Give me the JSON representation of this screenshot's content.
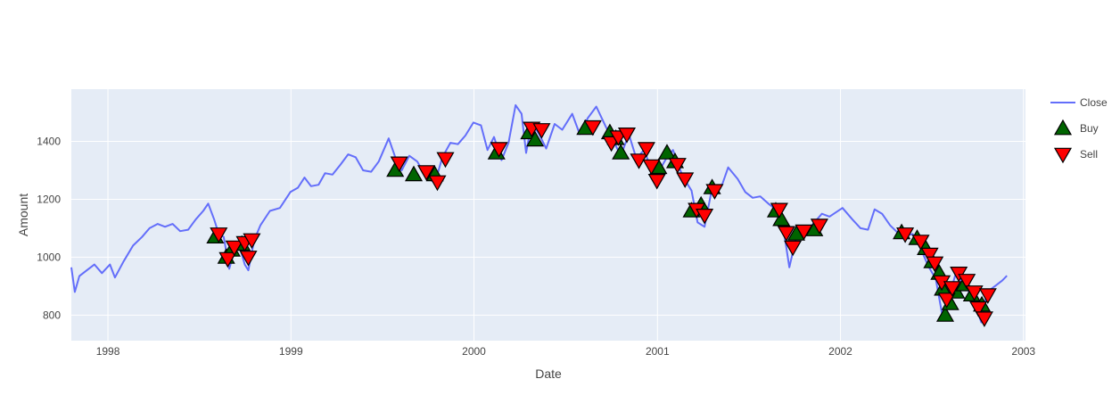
{
  "chart_data": {
    "type": "line",
    "xlabel": "Date",
    "ylabel": "Amount",
    "x_ticks": [
      "1998",
      "1999",
      "2000",
      "2001",
      "2002",
      "2003"
    ],
    "y_ticks": [
      800,
      1000,
      1200,
      1400
    ],
    "xlim": [
      "1997-10-20",
      "2003-01-05"
    ],
    "ylim": [
      712,
      1580
    ],
    "grid": true,
    "legend_position": "right",
    "colors": {
      "close": "#636efa",
      "buy": "#006400",
      "sell": "#ff0000",
      "plot_bg": "#e5ecf6",
      "grid": "#ffffff"
    },
    "series": [
      {
        "name": "Close",
        "type": "line",
        "points": [
          [
            "1997-10-20",
            965
          ],
          [
            "1997-10-27",
            880
          ],
          [
            "1997-11-05",
            935
          ],
          [
            "1997-11-20",
            955
          ],
          [
            "1997-12-05",
            975
          ],
          [
            "1997-12-20",
            945
          ],
          [
            "1998-01-05",
            975
          ],
          [
            "1998-01-15",
            930
          ],
          [
            "1998-02-01",
            985
          ],
          [
            "1998-02-20",
            1040
          ],
          [
            "1998-03-10",
            1070
          ],
          [
            "1998-03-25",
            1100
          ],
          [
            "1998-04-10",
            1115
          ],
          [
            "1998-04-25",
            1105
          ],
          [
            "1998-05-10",
            1115
          ],
          [
            "1998-05-25",
            1090
          ],
          [
            "1998-06-10",
            1095
          ],
          [
            "1998-06-25",
            1130
          ],
          [
            "1998-07-10",
            1160
          ],
          [
            "1998-07-20",
            1185
          ],
          [
            "1998-08-01",
            1130
          ],
          [
            "1998-08-10",
            1080
          ],
          [
            "1998-08-20",
            1070
          ],
          [
            "1998-08-31",
            960
          ],
          [
            "1998-09-10",
            1020
          ],
          [
            "1998-09-20",
            1040
          ],
          [
            "1998-10-01",
            975
          ],
          [
            "1998-10-08",
            955
          ],
          [
            "1998-10-20",
            1060
          ],
          [
            "1998-11-01",
            1110
          ],
          [
            "1998-11-20",
            1160
          ],
          [
            "1998-12-10",
            1170
          ],
          [
            "1998-12-31",
            1225
          ],
          [
            "1999-01-15",
            1240
          ],
          [
            "1999-01-28",
            1275
          ],
          [
            "1999-02-10",
            1245
          ],
          [
            "1999-02-25",
            1250
          ],
          [
            "1999-03-10",
            1290
          ],
          [
            "1999-03-25",
            1285
          ],
          [
            "1999-04-10",
            1320
          ],
          [
            "1999-04-25",
            1355
          ],
          [
            "1999-05-10",
            1345
          ],
          [
            "1999-05-25",
            1300
          ],
          [
            "1999-06-10",
            1295
          ],
          [
            "1999-06-25",
            1330
          ],
          [
            "1999-07-15",
            1410
          ],
          [
            "1999-07-30",
            1335
          ],
          [
            "1999-08-10",
            1300
          ],
          [
            "1999-08-25",
            1350
          ],
          [
            "1999-09-10",
            1330
          ],
          [
            "1999-09-25",
            1285
          ],
          [
            "1999-10-15",
            1255
          ],
          [
            "1999-10-30",
            1345
          ],
          [
            "1999-11-15",
            1395
          ],
          [
            "1999-11-30",
            1390
          ],
          [
            "1999-12-15",
            1420
          ],
          [
            "1999-12-31",
            1465
          ],
          [
            "2000-01-15",
            1455
          ],
          [
            "2000-01-28",
            1370
          ],
          [
            "2000-02-10",
            1415
          ],
          [
            "2000-02-25",
            1335
          ],
          [
            "2000-03-10",
            1395
          ],
          [
            "2000-03-24",
            1525
          ],
          [
            "2000-04-05",
            1495
          ],
          [
            "2000-04-14",
            1360
          ],
          [
            "2000-04-25",
            1465
          ],
          [
            "2000-05-10",
            1425
          ],
          [
            "2000-05-24",
            1375
          ],
          [
            "2000-06-10",
            1460
          ],
          [
            "2000-06-25",
            1440
          ],
          [
            "2000-07-15",
            1495
          ],
          [
            "2000-07-30",
            1425
          ],
          [
            "2000-08-15",
            1480
          ],
          [
            "2000-09-01",
            1520
          ],
          [
            "2000-09-20",
            1450
          ],
          [
            "2000-10-10",
            1385
          ],
          [
            "2000-10-20",
            1350
          ],
          [
            "2000-11-05",
            1425
          ],
          [
            "2000-11-20",
            1340
          ],
          [
            "2000-12-05",
            1370
          ],
          [
            "2000-12-20",
            1305
          ],
          [
            "2001-01-05",
            1300
          ],
          [
            "2001-01-20",
            1345
          ],
          [
            "2001-02-01",
            1370
          ],
          [
            "2001-02-20",
            1280
          ],
          [
            "2001-03-10",
            1230
          ],
          [
            "2001-03-22",
            1120
          ],
          [
            "2001-04-05",
            1105
          ],
          [
            "2001-04-20",
            1240
          ],
          [
            "2001-05-10",
            1250
          ],
          [
            "2001-05-22",
            1310
          ],
          [
            "2001-06-10",
            1270
          ],
          [
            "2001-06-25",
            1225
          ],
          [
            "2001-07-10",
            1205
          ],
          [
            "2001-07-25",
            1210
          ],
          [
            "2001-08-10",
            1185
          ],
          [
            "2001-08-25",
            1165
          ],
          [
            "2001-09-10",
            1090
          ],
          [
            "2001-09-21",
            965
          ],
          [
            "2001-10-05",
            1070
          ],
          [
            "2001-10-20",
            1080
          ],
          [
            "2001-11-10",
            1120
          ],
          [
            "2001-11-25",
            1150
          ],
          [
            "2001-12-10",
            1140
          ],
          [
            "2002-01-05",
            1170
          ],
          [
            "2002-01-25",
            1130
          ],
          [
            "2002-02-10",
            1100
          ],
          [
            "2002-02-25",
            1095
          ],
          [
            "2002-03-10",
            1165
          ],
          [
            "2002-03-25",
            1150
          ],
          [
            "2002-04-10",
            1110
          ],
          [
            "2002-04-25",
            1085
          ],
          [
            "2002-05-10",
            1075
          ],
          [
            "2002-05-25",
            1080
          ],
          [
            "2002-06-10",
            1030
          ],
          [
            "2002-06-25",
            970
          ],
          [
            "2002-07-10",
            925
          ],
          [
            "2002-07-23",
            800
          ],
          [
            "2002-08-05",
            860
          ],
          [
            "2002-08-20",
            950
          ],
          [
            "2002-09-05",
            900
          ],
          [
            "2002-09-20",
            870
          ],
          [
            "2002-10-09",
            775
          ],
          [
            "2002-10-20",
            880
          ],
          [
            "2002-11-05",
            900
          ],
          [
            "2002-11-20",
            920
          ],
          [
            "2002-11-29",
            936
          ]
        ]
      },
      {
        "name": "Buy",
        "type": "markers",
        "symbol": "triangle-up",
        "points": [
          [
            "1998-08-03",
            1070
          ],
          [
            "1998-08-25",
            1000
          ],
          [
            "1998-09-05",
            1025
          ],
          [
            "1998-09-25",
            1045
          ],
          [
            "1999-07-28",
            1300
          ],
          [
            "1999-09-03",
            1285
          ],
          [
            "1999-10-15",
            1285
          ],
          [
            "2000-02-15",
            1360
          ],
          [
            "2000-04-20",
            1430
          ],
          [
            "2000-05-02",
            1405
          ],
          [
            "2000-08-10",
            1445
          ],
          [
            "2000-09-28",
            1430
          ],
          [
            "2000-10-10",
            1410
          ],
          [
            "2000-10-20",
            1360
          ],
          [
            "2001-01-03",
            1310
          ],
          [
            "2001-01-20",
            1360
          ],
          [
            "2001-02-05",
            1330
          ],
          [
            "2001-03-10",
            1160
          ],
          [
            "2001-03-29",
            1180
          ],
          [
            "2001-04-20",
            1240
          ],
          [
            "2001-08-25",
            1160
          ],
          [
            "2001-09-05",
            1130
          ],
          [
            "2001-10-05",
            1080
          ],
          [
            "2001-11-10",
            1095
          ],
          [
            "2002-05-03",
            1085
          ],
          [
            "2002-06-03",
            1065
          ],
          [
            "2002-06-20",
            1030
          ],
          [
            "2002-07-03",
            985
          ],
          [
            "2002-07-17",
            945
          ],
          [
            "2002-07-24",
            890
          ],
          [
            "2002-07-29",
            800
          ],
          [
            "2002-08-08",
            840
          ],
          [
            "2002-08-20",
            880
          ],
          [
            "2002-09-05",
            905
          ],
          [
            "2002-09-20",
            870
          ],
          [
            "2002-10-10",
            835
          ]
        ]
      },
      {
        "name": "Sell",
        "type": "markers",
        "symbol": "triangle-down",
        "points": [
          [
            "1998-08-10",
            1080
          ],
          [
            "1998-08-28",
            995
          ],
          [
            "1998-09-10",
            1035
          ],
          [
            "1998-10-01",
            1050
          ],
          [
            "1998-10-08",
            1000
          ],
          [
            "1998-10-15",
            1060
          ],
          [
            "1999-08-05",
            1325
          ],
          [
            "1999-09-28",
            1295
          ],
          [
            "1999-10-20",
            1260
          ],
          [
            "1999-11-05",
            1340
          ],
          [
            "2000-02-20",
            1375
          ],
          [
            "2000-04-25",
            1445
          ],
          [
            "2000-05-15",
            1440
          ],
          [
            "2000-08-25",
            1450
          ],
          [
            "2000-10-01",
            1395
          ],
          [
            "2000-10-15",
            1415
          ],
          [
            "2000-11-01",
            1425
          ],
          [
            "2000-11-25",
            1335
          ],
          [
            "2000-12-10",
            1375
          ],
          [
            "2000-12-20",
            1315
          ],
          [
            "2000-12-31",
            1265
          ],
          [
            "2001-02-10",
            1320
          ],
          [
            "2001-02-25",
            1270
          ],
          [
            "2001-03-20",
            1165
          ],
          [
            "2001-04-05",
            1145
          ],
          [
            "2001-04-25",
            1230
          ],
          [
            "2001-09-01",
            1165
          ],
          [
            "2001-09-15",
            1085
          ],
          [
            "2001-09-28",
            1035
          ],
          [
            "2001-10-20",
            1090
          ],
          [
            "2001-11-20",
            1110
          ],
          [
            "2002-05-10",
            1080
          ],
          [
            "2002-06-10",
            1055
          ],
          [
            "2002-06-28",
            1010
          ],
          [
            "2002-07-08",
            980
          ],
          [
            "2002-07-22",
            915
          ],
          [
            "2002-08-01",
            855
          ],
          [
            "2002-08-12",
            895
          ],
          [
            "2002-08-25",
            945
          ],
          [
            "2002-09-10",
            920
          ],
          [
            "2002-09-25",
            880
          ],
          [
            "2002-10-03",
            825
          ],
          [
            "2002-10-15",
            790
          ],
          [
            "2002-10-22",
            870
          ]
        ]
      }
    ]
  }
}
